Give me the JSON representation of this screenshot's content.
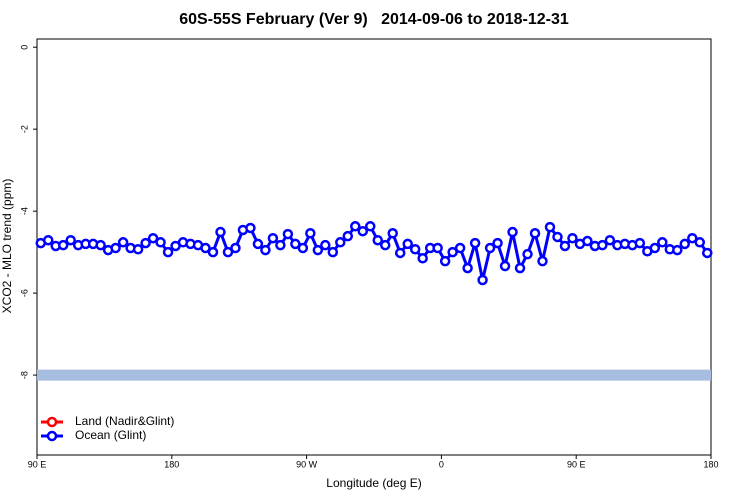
{
  "chart_data": {
    "type": "line",
    "title": "60S-55S February (Ver 9)   2014-09-06 to 2018-12-31",
    "x_label": "Longitude (deg E)",
    "y_label": "XCO2 - MLO trend (ppm)",
    "xlim": [
      90,
      540
    ],
    "xticks": [
      {
        "value": 90,
        "label": "90 E"
      },
      {
        "value": 180,
        "label": "180"
      },
      {
        "value": 270,
        "label": "90 W"
      },
      {
        "value": 360,
        "label": "0"
      },
      {
        "value": 450,
        "label": "90 E"
      },
      {
        "value": 540,
        "label": "180"
      }
    ],
    "ylim": [
      -9.95,
      0.2
    ],
    "yticks": [
      0,
      -2,
      -4,
      -6,
      -8
    ],
    "hline": {
      "value": -8,
      "color": "#a7bde0"
    },
    "legend": "bottomleft",
    "x": [
      92.5,
      97.5,
      102.5,
      107.5,
      112.5,
      117.5,
      122.5,
      127.5,
      132.5,
      137.5,
      142.5,
      147.5,
      152.5,
      157.5,
      162.5,
      167.5,
      172.5,
      177.5,
      182.5,
      187.5,
      192.5,
      197.5,
      202.5,
      207.5,
      212.5,
      217.5,
      222.5,
      227.5,
      232.5,
      237.5,
      242.5,
      247.5,
      252.5,
      257.5,
      262.5,
      267.5,
      272.5,
      277.5,
      282.5,
      287.5,
      292.5,
      297.5,
      302.5,
      307.5,
      312.5,
      317.5,
      322.5,
      327.5,
      332.5,
      337.5,
      342.5,
      347.5,
      352.5,
      357.5,
      362.5,
      367.5,
      372.5,
      377.5,
      382.5,
      387.5,
      392.5,
      397.5,
      402.5,
      407.5,
      412.5,
      417.5,
      422.5,
      427.5,
      432.5,
      437.5,
      442.5,
      447.5,
      452.5,
      457.5,
      462.5,
      467.5,
      472.5,
      477.5,
      482.5,
      487.5,
      492.5,
      497.5,
      502.5,
      507.5,
      512.5,
      517.5,
      522.5,
      527.5,
      532.5,
      537.5
    ],
    "series": [
      {
        "name": "Land (Nadir&Glint)",
        "color": "#ff0000",
        "values": [
          null,
          null,
          null,
          null,
          null,
          null,
          null,
          null,
          null,
          null,
          null,
          null,
          null,
          null,
          null,
          null,
          null,
          null,
          null,
          null,
          null,
          null,
          null,
          null,
          null,
          null,
          null,
          null,
          null,
          null,
          null,
          null,
          null,
          null,
          null,
          null,
          null,
          null,
          null,
          null,
          null,
          null,
          null,
          null,
          null,
          null,
          null,
          null,
          null,
          null,
          null,
          null,
          null,
          null,
          null,
          null,
          null,
          null,
          null,
          null,
          null,
          null,
          null,
          null,
          null,
          null,
          null,
          null,
          null,
          null,
          null,
          null,
          null,
          null,
          null,
          null,
          null,
          null,
          null,
          null,
          null,
          null,
          null,
          null,
          null,
          null,
          null,
          null,
          null,
          null
        ]
      },
      {
        "name": "Ocean (Glint)",
        "color": "#0000ff",
        "values": [
          -4.78,
          -4.71,
          -4.85,
          -4.83,
          -4.71,
          -4.83,
          -4.8,
          -4.8,
          -4.83,
          -4.95,
          -4.9,
          -4.76,
          -4.9,
          -4.93,
          -4.78,
          -4.66,
          -4.76,
          -5.0,
          -4.85,
          -4.76,
          -4.8,
          -4.83,
          -4.9,
          -5.0,
          -4.51,
          -5.0,
          -4.9,
          -4.46,
          -4.41,
          -4.8,
          -4.95,
          -4.66,
          -4.83,
          -4.56,
          -4.8,
          -4.9,
          -4.54,
          -4.95,
          -4.83,
          -5.0,
          -4.76,
          -4.61,
          -4.37,
          -4.49,
          -4.37,
          -4.71,
          -4.83,
          -4.54,
          -5.02,
          -4.8,
          -4.93,
          -5.15,
          -4.9,
          -4.9,
          -5.22,
          -5.0,
          -4.9,
          -5.39,
          -4.78,
          -5.68,
          -4.9,
          -4.78,
          -5.34,
          -4.51,
          -5.39,
          -5.05,
          -4.54,
          -5.22,
          -4.39,
          -4.63,
          -4.85,
          -4.66,
          -4.8,
          -4.73,
          -4.85,
          -4.83,
          -4.71,
          -4.83,
          -4.8,
          -4.83,
          -4.78,
          -4.98,
          -4.9,
          -4.76,
          -4.93,
          -4.95,
          -4.8,
          -4.66,
          -4.76,
          -5.02
        ]
      }
    ]
  }
}
